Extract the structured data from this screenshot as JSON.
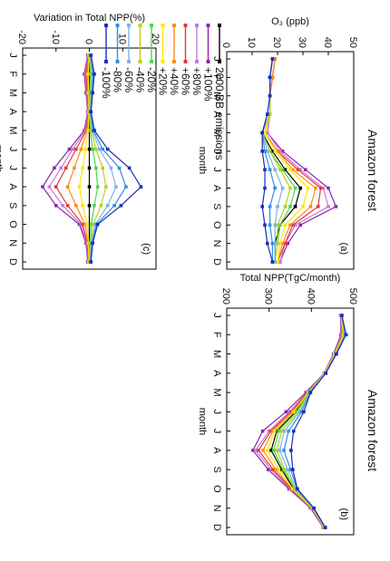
{
  "figure": {
    "title": "Amazon forest",
    "xlabel": "month",
    "months": [
      "J",
      "F",
      "M",
      "A",
      "M",
      "J",
      "J",
      "A",
      "S",
      "O",
      "N",
      "D"
    ]
  },
  "legend": {
    "entries": [
      "2000 BB emissions",
      "+100%",
      "+80%",
      "+60%",
      "+40%",
      "+20%",
      "-20%",
      "-40%",
      "-60%",
      "-80%",
      "-100%"
    ],
    "colors": [
      "#000000",
      "#8e24aa",
      "#c07ce0",
      "#e53935",
      "#ff8c1a",
      "#ffe600",
      "#4cd64c",
      "#b9d21e",
      "#7fb3e8",
      "#2f8fe8",
      "#1a2fb8"
    ]
  },
  "chart_data": [
    {
      "type": "line",
      "panel_label": "(a)",
      "ylabel": "O₃ (ppb)",
      "ylim": [
        0,
        50
      ],
      "yticks": [
        0,
        10,
        20,
        30,
        40,
        50
      ],
      "categories": [
        "J",
        "F",
        "M",
        "A",
        "M",
        "J",
        "J",
        "A",
        "S",
        "O",
        "N",
        "D"
      ],
      "series": [
        {
          "name": "2000 BB emissions",
          "values": [
            18,
            17,
            17,
            17,
            14,
            18,
            23,
            29,
            27,
            21,
            19,
            19
          ]
        },
        {
          "name": "+100%",
          "values": [
            19,
            18,
            17,
            17,
            16,
            22,
            31,
            40,
            43,
            29,
            24,
            21
          ]
        },
        {
          "name": "+80%",
          "values": [
            19,
            18,
            17,
            17,
            16,
            21,
            29,
            38,
            40,
            27,
            23,
            21
          ]
        },
        {
          "name": "+60%",
          "values": [
            19,
            18,
            17,
            17,
            15,
            20,
            28,
            37,
            36,
            26,
            23,
            20
          ]
        },
        {
          "name": "+40%",
          "values": [
            19,
            18,
            17,
            17,
            15,
            20,
            26,
            35,
            33,
            25,
            22,
            20
          ]
        },
        {
          "name": "+20%",
          "values": [
            18,
            17,
            17,
            17,
            15,
            19,
            25,
            32,
            30,
            23,
            21,
            20
          ]
        },
        {
          "name": "-20%",
          "values": [
            18,
            17,
            17,
            17,
            14,
            17,
            22,
            27,
            25,
            21,
            20,
            19
          ]
        },
        {
          "name": "-40%",
          "values": [
            18,
            17,
            17,
            17,
            14,
            17,
            21,
            25,
            23,
            20,
            20,
            19
          ]
        },
        {
          "name": "-60%",
          "values": [
            18,
            17,
            17,
            16,
            14,
            16,
            19,
            22,
            20,
            19,
            19,
            19
          ]
        },
        {
          "name": "-80%",
          "values": [
            18,
            17,
            17,
            16,
            14,
            15,
            17,
            19,
            17,
            17,
            18,
            18
          ]
        },
        {
          "name": "-100%",
          "values": [
            18,
            17,
            17,
            16,
            14,
            14,
            15,
            15,
            14,
            15,
            16,
            18
          ]
        }
      ]
    },
    {
      "type": "line",
      "panel_label": "(b)",
      "ylabel": "Total NPP(TgC/month)",
      "ylim": [
        200,
        500
      ],
      "yticks": [
        200,
        300,
        400,
        500
      ],
      "categories": [
        "J",
        "F",
        "M",
        "A",
        "M",
        "J",
        "J",
        "A",
        "S",
        "O",
        "N",
        "D"
      ],
      "series": [
        {
          "name": "2000 BB emissions",
          "values": [
            470,
            478,
            456,
            432,
            393,
            362,
            318,
            305,
            330,
            358,
            403,
            430
          ]
        },
        {
          "name": "+100%",
          "values": [
            469,
            470,
            452,
            430,
            387,
            340,
            285,
            262,
            298,
            347,
            398,
            428
          ]
        },
        {
          "name": "+80%",
          "values": [
            470,
            472,
            453,
            430,
            390,
            348,
            300,
            268,
            305,
            350,
            400,
            429
          ]
        },
        {
          "name": "+60%",
          "values": [
            470,
            474,
            454,
            431,
            391,
            352,
            304,
            275,
            310,
            352,
            401,
            429
          ]
        },
        {
          "name": "+40%",
          "values": [
            470,
            475,
            455,
            431,
            392,
            356,
            309,
            286,
            316,
            354,
            402,
            430
          ]
        },
        {
          "name": "+20%",
          "values": [
            470,
            476,
            455,
            432,
            393,
            359,
            313,
            296,
            323,
            356,
            402,
            430
          ]
        },
        {
          "name": "-20%",
          "values": [
            471,
            479,
            457,
            433,
            394,
            365,
            323,
            311,
            334,
            360,
            404,
            431
          ]
        },
        {
          "name": "-40%",
          "values": [
            471,
            480,
            458,
            433,
            395,
            369,
            330,
            318,
            338,
            362,
            404,
            431
          ]
        },
        {
          "name": "-60%",
          "values": [
            471,
            480,
            458,
            434,
            396,
            373,
            336,
            325,
            344,
            364,
            405,
            432
          ]
        },
        {
          "name": "-80%",
          "values": [
            472,
            481,
            459,
            434,
            397,
            377,
            346,
            335,
            351,
            366,
            405,
            432
          ]
        },
        {
          "name": "-100%",
          "values": [
            472,
            482,
            459,
            434,
            398,
            382,
            358,
            352,
            356,
            367,
            406,
            433
          ]
        }
      ]
    },
    {
      "type": "line",
      "panel_label": "(c)",
      "ylabel": "Variation in Total NPP(%)",
      "ylim": [
        -20,
        20
      ],
      "yticks": [
        -20,
        -10,
        0,
        10,
        20
      ],
      "categories": [
        "J",
        "F",
        "M",
        "A",
        "M",
        "J",
        "J",
        "A",
        "S",
        "O",
        "N",
        "D"
      ],
      "series": [
        {
          "name": "2000 BB emissions",
          "values": [
            0,
            0,
            0,
            0,
            0,
            0,
            0,
            0,
            0,
            0,
            0,
            0
          ]
        },
        {
          "name": "+100%",
          "values": [
            -0.5,
            -1.5,
            -1,
            -0.5,
            -1.5,
            -6,
            -10.5,
            -14,
            -10,
            -3,
            -1,
            -0.5
          ]
        },
        {
          "name": "+80%",
          "values": [
            -0.4,
            -1.2,
            -0.8,
            -0.4,
            -1.2,
            -5,
            -8.5,
            -12,
            -8,
            -2.5,
            -0.8,
            -0.4
          ]
        },
        {
          "name": "+60%",
          "values": [
            -0.3,
            -0.9,
            -0.6,
            -0.3,
            -0.9,
            -4,
            -7,
            -10,
            -6.5,
            -2,
            -0.6,
            -0.3
          ]
        },
        {
          "name": "+40%",
          "values": [
            -0.2,
            -0.6,
            -0.4,
            -0.2,
            -0.6,
            -2.5,
            -4.5,
            -6.5,
            -4,
            -1.3,
            -0.4,
            -0.2
          ]
        },
        {
          "name": "+20%",
          "values": [
            -0.1,
            -0.3,
            -0.2,
            -0.1,
            -0.3,
            -1.2,
            -2,
            -3,
            -2,
            -0.6,
            -0.2,
            -0.1
          ]
        },
        {
          "name": "-20%",
          "values": [
            0.1,
            0.3,
            0.2,
            0.1,
            0.3,
            1,
            2,
            2.5,
            1.5,
            0.6,
            0.2,
            0.1
          ]
        },
        {
          "name": "-40%",
          "values": [
            0.2,
            0.6,
            0.4,
            0.2,
            0.6,
            2,
            4,
            5,
            3.5,
            1.2,
            0.4,
            0.2
          ]
        },
        {
          "name": "-60%",
          "values": [
            0.3,
            0.9,
            0.6,
            0.3,
            0.9,
            3,
            6.5,
            8,
            5.5,
            1.8,
            0.6,
            0.3
          ]
        },
        {
          "name": "-80%",
          "values": [
            0.4,
            1.2,
            0.8,
            0.4,
            1.2,
            4,
            9,
            11,
            7.5,
            2.2,
            0.8,
            0.4
          ]
        },
        {
          "name": "-100%",
          "values": [
            0.5,
            1.5,
            1,
            0.5,
            1.5,
            5.5,
            12,
            15.5,
            9.5,
            2.5,
            1,
            0.5
          ]
        }
      ]
    }
  ]
}
